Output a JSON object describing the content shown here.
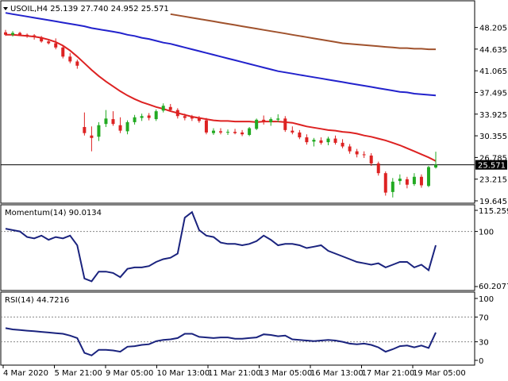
{
  "chart_data": [
    {
      "type": "candlestick",
      "title": "USOIL,H4  25.139 27.740 24.952 25.571",
      "symbol": "USOIL,H4",
      "ohlc_header": [
        "25.139",
        "27.740",
        "24.952",
        "25.571"
      ],
      "ylim": [
        19.645,
        50.5
      ],
      "y_ticks": [
        "48.205",
        "44.635",
        "41.065",
        "37.495",
        "33.925",
        "30.355",
        "26.785",
        "23.215",
        "19.645"
      ],
      "current_price": "25.571",
      "up_color": "#22aa22",
      "down_color": "#dd2222",
      "candles": [
        [
          47.4,
          47.8,
          46.8,
          47.0
        ],
        [
          47.0,
          47.6,
          46.7,
          47.3
        ],
        [
          47.3,
          47.5,
          46.8,
          47.0
        ],
        [
          47.0,
          47.2,
          46.5,
          46.8
        ],
        [
          46.9,
          47.1,
          46.2,
          46.6
        ],
        [
          46.6,
          46.8,
          45.7,
          45.9
        ],
        [
          45.9,
          46.3,
          45.4,
          45.6
        ],
        [
          45.6,
          46.4,
          44.6,
          44.9
        ],
        [
          44.9,
          45.3,
          43.1,
          43.4
        ],
        [
          43.4,
          44.0,
          42.3,
          42.6
        ],
        [
          42.6,
          42.9,
          41.4,
          41.9
        ],
        [
          31.8,
          34.2,
          30.4,
          30.8
        ],
        [
          30.4,
          31.9,
          27.8,
          30.0
        ],
        [
          30.2,
          32.6,
          29.5,
          32.1
        ],
        [
          32.3,
          34.6,
          31.8,
          33.2
        ],
        [
          33.1,
          34.4,
          32.0,
          32.3
        ],
        [
          32.1,
          33.4,
          30.8,
          31.2
        ],
        [
          31.1,
          32.9,
          30.6,
          32.6
        ],
        [
          32.6,
          33.8,
          32.2,
          33.4
        ],
        [
          33.3,
          34.0,
          32.8,
          33.6
        ],
        [
          33.7,
          34.1,
          32.9,
          33.3
        ],
        [
          33.1,
          34.7,
          32.8,
          34.4
        ],
        [
          34.5,
          35.7,
          34.2,
          35.3
        ],
        [
          35.1,
          35.6,
          34.3,
          34.6
        ],
        [
          34.6,
          34.9,
          33.2,
          33.6
        ],
        [
          33.6,
          34.0,
          32.9,
          33.3
        ],
        [
          33.4,
          33.8,
          32.8,
          33.2
        ],
        [
          33.2,
          33.6,
          32.5,
          32.8
        ],
        [
          32.9,
          33.3,
          30.6,
          30.9
        ],
        [
          30.8,
          31.6,
          30.5,
          31.2
        ],
        [
          31.1,
          31.6,
          30.6,
          30.9
        ],
        [
          30.9,
          31.4,
          30.5,
          31.0
        ],
        [
          31.0,
          31.5,
          30.6,
          30.8
        ],
        [
          30.9,
          31.3,
          30.3,
          30.6
        ],
        [
          30.5,
          31.8,
          30.3,
          31.6
        ],
        [
          31.5,
          33.2,
          31.3,
          33.0
        ],
        [
          33.0,
          33.7,
          32.2,
          32.6
        ],
        [
          32.6,
          33.4,
          32.0,
          33.1
        ],
        [
          33.0,
          33.9,
          32.6,
          33.2
        ],
        [
          33.2,
          33.6,
          31.0,
          31.3
        ],
        [
          31.2,
          31.9,
          30.6,
          30.9
        ],
        [
          30.9,
          31.3,
          29.8,
          30.1
        ],
        [
          30.1,
          30.6,
          28.9,
          29.3
        ],
        [
          29.4,
          30.0,
          28.6,
          29.7
        ],
        [
          29.6,
          30.1,
          28.9,
          29.2
        ],
        [
          29.3,
          30.2,
          28.8,
          29.9
        ],
        [
          29.9,
          30.4,
          28.9,
          29.2
        ],
        [
          29.2,
          29.8,
          28.3,
          28.6
        ],
        [
          28.6,
          29.0,
          27.4,
          27.8
        ],
        [
          27.8,
          28.2,
          26.8,
          27.3
        ],
        [
          27.3,
          27.8,
          26.7,
          27.2
        ],
        [
          27.1,
          27.5,
          25.4,
          25.8
        ],
        [
          25.8,
          26.1,
          23.8,
          24.2
        ],
        [
          24.2,
          24.5,
          20.5,
          21.0
        ],
        [
          21.1,
          23.4,
          20.2,
          22.8
        ],
        [
          22.9,
          24.0,
          22.3,
          23.3
        ],
        [
          23.2,
          23.6,
          21.7,
          22.3
        ],
        [
          22.4,
          24.2,
          22.1,
          23.6
        ],
        [
          23.6,
          24.0,
          21.8,
          22.2
        ],
        [
          22.1,
          25.4,
          21.9,
          25.2
        ],
        [
          25.139,
          27.74,
          24.952,
          25.571
        ]
      ],
      "moving_averages": [
        {
          "period_hint": "fast",
          "color": "#dd2222",
          "values": [
            47.0,
            47.0,
            46.9,
            46.8,
            46.7,
            46.5,
            46.2,
            45.8,
            45.2,
            44.4,
            43.4,
            42.3,
            41.2,
            40.2,
            39.3,
            38.5,
            37.7,
            37.0,
            36.4,
            35.9,
            35.5,
            35.1,
            34.8,
            34.4,
            34.1,
            33.8,
            33.5,
            33.3,
            33.1,
            32.9,
            32.8,
            32.8,
            32.7,
            32.7,
            32.7,
            32.6,
            32.7,
            32.7,
            32.7,
            32.6,
            32.5,
            32.2,
            31.9,
            31.7,
            31.5,
            31.3,
            31.2,
            31.0,
            30.9,
            30.7,
            30.4,
            30.2,
            29.9,
            29.6,
            29.2,
            28.8,
            28.3,
            27.8,
            27.3,
            26.8,
            26.2
          ]
        },
        {
          "period_hint": "medium",
          "color": "#2222cc",
          "values": [
            50.6,
            50.4,
            50.2,
            50.0,
            49.8,
            49.6,
            49.4,
            49.2,
            49.0,
            48.8,
            48.6,
            48.4,
            48.1,
            47.9,
            47.7,
            47.5,
            47.3,
            47.0,
            46.8,
            46.5,
            46.3,
            46.0,
            45.7,
            45.5,
            45.2,
            44.9,
            44.6,
            44.3,
            44.0,
            43.7,
            43.4,
            43.1,
            42.8,
            42.5,
            42.2,
            41.9,
            41.6,
            41.3,
            41.0,
            40.8,
            40.6,
            40.4,
            40.2,
            40.0,
            39.8,
            39.6,
            39.4,
            39.2,
            39.0,
            38.8,
            38.6,
            38.4,
            38.2,
            38.0,
            37.8,
            37.6,
            37.5,
            37.3,
            37.2,
            37.1,
            37.0
          ]
        },
        {
          "period_hint": "slow",
          "color": "#a0522d",
          "values": [
            null,
            null,
            null,
            null,
            null,
            null,
            null,
            null,
            null,
            null,
            null,
            null,
            null,
            null,
            null,
            null,
            null,
            null,
            null,
            null,
            null,
            null,
            null,
            50.4,
            50.2,
            50.0,
            49.8,
            49.6,
            49.4,
            49.2,
            49.0,
            48.8,
            48.6,
            48.4,
            48.2,
            48.0,
            47.8,
            47.6,
            47.4,
            47.2,
            47.0,
            46.8,
            46.6,
            46.4,
            46.2,
            46.0,
            45.8,
            45.6,
            45.5,
            45.4,
            45.3,
            45.2,
            45.1,
            45.0,
            44.9,
            44.8,
            44.8,
            44.7,
            44.7,
            44.6,
            44.6
          ]
        }
      ]
    },
    {
      "type": "line",
      "title": "Momentum(14) 90.0134",
      "y_ticks": [
        "115.2599",
        "100",
        "60.2077"
      ],
      "ylim": [
        60.2077,
        115.2599
      ],
      "reference_levels": [
        100
      ],
      "series": [
        {
          "color": "#1a237e",
          "values": [
            102,
            101,
            100,
            96,
            95,
            97,
            94,
            96,
            95,
            97,
            90,
            66,
            64,
            71,
            71,
            70,
            67,
            73,
            74,
            74,
            75,
            78,
            80,
            81,
            84,
            110,
            114,
            101,
            97,
            96,
            92,
            91,
            91,
            90,
            91,
            93,
            97,
            94,
            90,
            91,
            91,
            90,
            88,
            89,
            90,
            86,
            84,
            82,
            80,
            78,
            77,
            76,
            77,
            74,
            76,
            78,
            78,
            74,
            76,
            72,
            90
          ]
        }
      ]
    },
    {
      "type": "line",
      "title": "RSI(14) 44.7216",
      "y_ticks": [
        "100",
        "70",
        "30",
        "0"
      ],
      "ylim": [
        0,
        100
      ],
      "reference_levels": [
        70,
        30
      ],
      "series": [
        {
          "color": "#1a237e",
          "values": [
            52,
            50,
            49,
            48,
            47,
            46,
            45,
            44,
            43,
            40,
            36,
            12,
            8,
            17,
            17,
            16,
            14,
            22,
            23,
            25,
            26,
            31,
            33,
            34,
            36,
            43,
            43,
            38,
            37,
            36,
            37,
            37,
            35,
            35,
            36,
            37,
            42,
            41,
            39,
            40,
            34,
            33,
            32,
            31,
            32,
            33,
            32,
            30,
            27,
            26,
            27,
            25,
            21,
            14,
            18,
            23,
            24,
            21,
            24,
            20,
            45
          ]
        }
      ]
    }
  ],
  "time_axis": [
    "4 Mar 2020",
    "5 Mar 21:00",
    "9 Mar 05:00",
    "10 Mar 13:00",
    "11 Mar 21:00",
    "13 Mar 05:00",
    "16 Mar 13:00",
    "17 Mar 21:00",
    "19 Mar 05:00"
  ]
}
